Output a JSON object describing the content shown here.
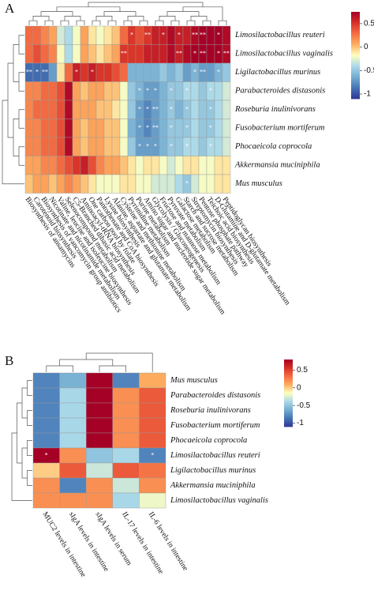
{
  "chart_data": [
    {
      "type": "heatmap",
      "panel_label": "A",
      "rows": [
        "Limosilactobacillus reuteri",
        "Limosilactobacillus vaginalis",
        "Ligilactobacillus murinus",
        "Parabacteroides distasonis",
        "Roseburia inulinivorans",
        "Fusobacterium mortiferum",
        "Phocaeicola coprocola",
        "Akkermansia muciniphila",
        "Mus musculus"
      ],
      "columns": [
        "Biosynthesis of ansamycins",
        "Carotenoid biosynthesis",
        "Biosynthesis of vancomycin group antibiotics",
        "Nicotinate and nicotinamide metabolism",
        "Valine, leucine and isoleucine biosynthesis",
        "Selenocompound metabolism",
        "C5-Branched dibasic acid metabolism",
        "Aminoacyl-tRNA biosynthesis",
        "One carbon pool by folate",
        "Pantothenate and CoA biosynthesis",
        "Lysine biosynthesis",
        "Alanine, aspartate and glutamate metabolism",
        "Cysteine and methionine metabolism",
        "Pyrimidine metabolism",
        "Purine metabolism",
        "Amino sugar and nucleotide sugar metabolism",
        "Glycolysis / Gluconeogenesis",
        "Fructose and mannose metabolism",
        "Pyruvate metabolism",
        "Galactose metabolism",
        "Starch and sucrose metabolism",
        "Streptomycin biosynthesis",
        "Pentose phosphate pathway",
        "Teichoic acid biosynthesis",
        "D-Glutamine and D-glutamate metabolism",
        "Peptidoglycan biosynthesis"
      ],
      "values": [
        [
          0.3,
          0.3,
          0.2,
          0.1,
          -0.3,
          -0.4,
          -0.2,
          0.1,
          -0.1,
          -0.2,
          -0.1,
          0.0,
          0.3,
          0.5,
          0.4,
          0.5,
          0.6,
          0.6,
          0.7,
          0.6,
          0.6,
          0.7,
          0.8,
          0.8,
          0.8,
          0.7
        ],
        [
          0.3,
          0.4,
          0.3,
          0.2,
          -0.2,
          -0.4,
          -0.2,
          0.1,
          0.0,
          -0.1,
          0.0,
          0.1,
          0.5,
          0.5,
          0.5,
          0.6,
          0.6,
          0.6,
          0.7,
          0.6,
          0.7,
          0.8,
          0.8,
          0.8,
          0.8,
          0.7
        ],
        [
          -0.9,
          -0.9,
          -0.9,
          -0.7,
          -0.1,
          0.3,
          0.6,
          0.5,
          0.6,
          0.5,
          0.5,
          0.4,
          0.3,
          -0.6,
          -0.6,
          -0.6,
          -0.6,
          -0.5,
          -0.6,
          -0.5,
          -0.7,
          -0.6,
          -0.7,
          -0.7,
          -0.6,
          -0.5
        ],
        [
          0.2,
          0.2,
          0.3,
          0.3,
          0.4,
          0.7,
          0.1,
          0.0,
          0.1,
          0.1,
          0.0,
          0.0,
          -0.2,
          -0.5,
          -0.6,
          -0.7,
          -0.7,
          -0.6,
          -0.5,
          -0.5,
          -0.4,
          -0.4,
          -0.5,
          -0.4,
          -0.4,
          -0.3
        ],
        [
          0.2,
          0.3,
          0.3,
          0.3,
          0.4,
          0.7,
          0.1,
          0.1,
          0.1,
          0.0,
          0.0,
          -0.1,
          -0.2,
          -0.5,
          -0.7,
          -0.8,
          -0.7,
          -0.6,
          -0.5,
          -0.6,
          -0.5,
          -0.4,
          -0.5,
          -0.5,
          -0.4,
          -0.3
        ],
        [
          0.2,
          0.2,
          0.3,
          0.3,
          0.4,
          0.7,
          0.1,
          0.0,
          0.1,
          0.1,
          0.0,
          0.0,
          -0.2,
          -0.6,
          -0.7,
          -0.8,
          -0.7,
          -0.6,
          -0.5,
          -0.5,
          -0.5,
          -0.4,
          -0.5,
          -0.5,
          -0.4,
          -0.3
        ],
        [
          0.2,
          0.2,
          0.3,
          0.3,
          0.4,
          0.7,
          0.1,
          0.0,
          0.1,
          0.1,
          0.0,
          0.0,
          -0.2,
          -0.5,
          -0.7,
          -0.7,
          -0.7,
          -0.6,
          -0.5,
          -0.5,
          -0.4,
          -0.4,
          -0.5,
          -0.4,
          -0.4,
          -0.3
        ],
        [
          0.1,
          0.1,
          0.2,
          0.2,
          0.3,
          0.4,
          0.5,
          0.6,
          0.4,
          0.2,
          0.1,
          0.1,
          0.0,
          -0.1,
          -0.2,
          -0.1,
          -0.1,
          -0.2,
          -0.3,
          -0.2,
          -0.1,
          -0.1,
          -0.2,
          -0.2,
          -0.1,
          -0.1
        ],
        [
          0.0,
          0.1,
          0.1,
          0.0,
          0.1,
          0.2,
          0.1,
          0.0,
          -0.1,
          -0.2,
          -0.2,
          -0.2,
          -0.1,
          -0.1,
          -0.2,
          -0.2,
          -0.3,
          -0.3,
          -0.3,
          -0.4,
          -0.5,
          -0.3,
          -0.2,
          -0.2,
          -0.1,
          -0.1
        ]
      ],
      "value_labels": [
        [
          null,
          null,
          null,
          null,
          null,
          null,
          null,
          null,
          null,
          null,
          null,
          null,
          null,
          "*",
          null,
          "**",
          null,
          "*",
          null,
          "*",
          null,
          "**",
          "**",
          null,
          "*",
          null
        ],
        [
          null,
          null,
          null,
          null,
          null,
          null,
          null,
          null,
          null,
          null,
          null,
          null,
          "**",
          null,
          null,
          null,
          null,
          null,
          null,
          "**",
          null,
          "*",
          "**",
          null,
          "*",
          "**"
        ],
        [
          "**",
          "*",
          "**",
          null,
          null,
          null,
          "*",
          null,
          "*",
          null,
          null,
          null,
          null,
          null,
          null,
          null,
          null,
          null,
          null,
          null,
          null,
          "*",
          "**",
          null,
          "*",
          null
        ],
        [
          null,
          null,
          null,
          null,
          null,
          null,
          null,
          null,
          null,
          null,
          null,
          null,
          null,
          null,
          "*",
          "*",
          "*",
          null,
          "*",
          null,
          "*",
          null,
          null,
          "*",
          null,
          null
        ],
        [
          null,
          null,
          null,
          null,
          null,
          null,
          null,
          null,
          null,
          null,
          null,
          null,
          null,
          null,
          "*",
          "*",
          "**",
          null,
          "*",
          null,
          "*",
          null,
          null,
          "*",
          null,
          null
        ],
        [
          null,
          null,
          null,
          null,
          null,
          null,
          null,
          null,
          null,
          null,
          null,
          null,
          null,
          null,
          "*",
          "*",
          "**",
          null,
          "*",
          null,
          "*",
          null,
          null,
          "*",
          null,
          null
        ],
        [
          null,
          null,
          null,
          null,
          null,
          null,
          null,
          null,
          null,
          null,
          null,
          null,
          null,
          null,
          "*",
          "*",
          "*",
          null,
          "*",
          null,
          "*",
          null,
          null,
          "*",
          null,
          null
        ],
        [
          null,
          null,
          null,
          null,
          null,
          null,
          null,
          null,
          null,
          null,
          null,
          null,
          null,
          null,
          null,
          null,
          null,
          null,
          null,
          null,
          null,
          null,
          null,
          null,
          null,
          null
        ],
        [
          null,
          null,
          null,
          null,
          null,
          null,
          null,
          null,
          null,
          null,
          null,
          null,
          null,
          null,
          null,
          null,
          null,
          null,
          null,
          null,
          "*",
          null,
          null,
          null,
          null,
          null
        ]
      ],
      "clim": [
        -1.1,
        0.75
      ],
      "cticks": [
        0.5,
        0,
        -0.5,
        -1
      ],
      "colormap": [
        "#313695",
        "#4575b4",
        "#74add1",
        "#abd9e9",
        "#ffffbf",
        "#fdae61",
        "#f46d43",
        "#d73027",
        "#a50026"
      ]
    },
    {
      "type": "heatmap",
      "panel_label": "B",
      "rows": [
        "Mus musculus",
        "Parabacteroides distasonis",
        "Roseburia inulinivorans",
        "Fusobacterium mortiferum",
        "Phocaeicola coprocola",
        "Limosilactobacillus reuteri",
        "Ligilactobacillus murinus",
        "Akkermansia muciniphila",
        "Limosilactobacillus vaginalis"
      ],
      "columns": [
        "MUC2 levels in intestine",
        "sIgA levels in intestine",
        "sIgA levels in serum",
        "IL-17 levels in intestine",
        "IL-6 levels in intestine"
      ],
      "values": [
        [
          -0.8,
          -0.6,
          0.8,
          -0.8,
          0.1
        ],
        [
          -0.8,
          -0.4,
          0.8,
          0.2,
          0.4
        ],
        [
          -0.8,
          -0.4,
          0.8,
          0.2,
          0.4
        ],
        [
          -0.8,
          -0.4,
          0.8,
          0.2,
          0.4
        ],
        [
          -0.8,
          -0.4,
          0.8,
          0.2,
          0.4
        ],
        [
          0.8,
          0.2,
          -0.5,
          -0.4,
          -0.8
        ],
        [
          0.0,
          0.4,
          -0.3,
          0.4,
          0.3
        ],
        [
          0.2,
          -0.8,
          0.2,
          -0.3,
          0.2
        ],
        [
          0.2,
          0.2,
          0.2,
          -0.4,
          -0.2
        ]
      ],
      "value_labels": [
        [
          null,
          null,
          null,
          null,
          null
        ],
        [
          null,
          null,
          null,
          null,
          null
        ],
        [
          null,
          null,
          null,
          null,
          null
        ],
        [
          null,
          null,
          null,
          null,
          null
        ],
        [
          null,
          null,
          null,
          null,
          null
        ],
        [
          "*",
          null,
          null,
          null,
          "*"
        ],
        [
          null,
          null,
          null,
          null,
          null
        ],
        [
          null,
          null,
          null,
          null,
          null
        ],
        [
          null,
          null,
          null,
          null,
          null
        ]
      ],
      "clim": [
        -1.1,
        0.8
      ],
      "cticks": [
        0.5,
        0,
        -0.5,
        -1
      ],
      "colormap": [
        "#313695",
        "#4575b4",
        "#74add1",
        "#abd9e9",
        "#ffffbf",
        "#fdae61",
        "#f46d43",
        "#d73027",
        "#a50026"
      ]
    }
  ]
}
